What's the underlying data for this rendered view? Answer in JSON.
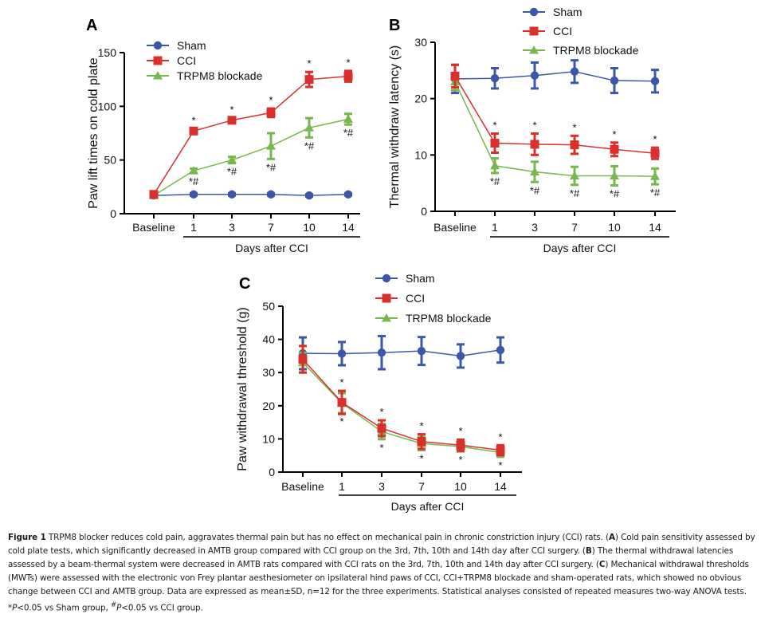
{
  "chart_data": [
    {
      "type": "line",
      "panel": "A",
      "title": "",
      "xlabel": "Days after CCI",
      "ylabel": "Paw lift times on cold plate",
      "categories": [
        "Baseline",
        "1",
        "3",
        "7",
        "10",
        "14"
      ],
      "yticks": [
        0,
        50,
        100,
        150
      ],
      "ylim": [
        0,
        150
      ],
      "legend": [
        "Sham",
        "CCI",
        "TRPM8 blockade"
      ],
      "legend_position": "top-left",
      "series": [
        {
          "name": "Sham",
          "color": "#3b58a8",
          "marker": "circle",
          "values": [
            17,
            18,
            18,
            18,
            17,
            18
          ],
          "errors": [
            1,
            1,
            1,
            1,
            1,
            1
          ]
        },
        {
          "name": "CCI",
          "color": "#d9302c",
          "marker": "square",
          "values": [
            18,
            77,
            87,
            94,
            125,
            128
          ],
          "errors": [
            1,
            2,
            2,
            4,
            7,
            5
          ]
        },
        {
          "name": "TRPM8 blockade",
          "color": "#76b84b",
          "marker": "triangle",
          "values": [
            17,
            40,
            50,
            63,
            80,
            88
          ],
          "errors": [
            1,
            2,
            3,
            12,
            9,
            5
          ]
        }
      ],
      "annotations": [
        {
          "series": "CCI",
          "index": 1,
          "text": "*",
          "pos": "above"
        },
        {
          "series": "CCI",
          "index": 2,
          "text": "*",
          "pos": "above"
        },
        {
          "series": "CCI",
          "index": 3,
          "text": "*",
          "pos": "above"
        },
        {
          "series": "CCI",
          "index": 4,
          "text": "*",
          "pos": "above"
        },
        {
          "series": "CCI",
          "index": 5,
          "text": "*",
          "pos": "above"
        },
        {
          "series": "TRPM8 blockade",
          "index": 1,
          "text": "*#",
          "pos": "below"
        },
        {
          "series": "TRPM8 blockade",
          "index": 2,
          "text": "*#",
          "pos": "below"
        },
        {
          "series": "TRPM8 blockade",
          "index": 3,
          "text": "*#",
          "pos": "below"
        },
        {
          "series": "TRPM8 blockade",
          "index": 4,
          "text": "*#",
          "pos": "below"
        },
        {
          "series": "TRPM8 blockade",
          "index": 5,
          "text": "*#",
          "pos": "below"
        }
      ]
    },
    {
      "type": "line",
      "panel": "B",
      "title": "",
      "xlabel": "Days after CCI",
      "ylabel": "Thermal withdraw latency (s)",
      "categories": [
        "Baseline",
        "1",
        "3",
        "7",
        "10",
        "14"
      ],
      "yticks": [
        0,
        10,
        20,
        30
      ],
      "ylim": [
        0,
        30
      ],
      "legend": [
        "Sham",
        "CCI",
        "TRPM8 blockade"
      ],
      "legend_position": "top-right",
      "series": [
        {
          "name": "Sham",
          "color": "#3b58a8",
          "marker": "circle",
          "values": [
            23.5,
            23.6,
            24.1,
            24.8,
            23.2,
            23.1
          ],
          "errors": [
            2.5,
            1.8,
            2.3,
            2.0,
            2.2,
            2.0
          ]
        },
        {
          "name": "CCI",
          "color": "#d9302c",
          "marker": "square",
          "values": [
            24.0,
            12.1,
            11.9,
            11.8,
            11.0,
            10.3
          ],
          "errors": [
            2.0,
            1.7,
            1.9,
            1.6,
            1.2,
            1.0
          ]
        },
        {
          "name": "TRPM8 blockade",
          "color": "#76b84b",
          "marker": "triangle",
          "values": [
            23.0,
            8.1,
            7.0,
            6.3,
            6.3,
            6.2
          ],
          "errors": [
            1.5,
            1.3,
            1.8,
            1.6,
            1.7,
            1.4
          ]
        }
      ],
      "annotations": [
        {
          "series": "CCI",
          "index": 1,
          "text": "*",
          "pos": "above"
        },
        {
          "series": "CCI",
          "index": 2,
          "text": "*",
          "pos": "above"
        },
        {
          "series": "CCI",
          "index": 3,
          "text": "*",
          "pos": "above"
        },
        {
          "series": "CCI",
          "index": 4,
          "text": "*",
          "pos": "above"
        },
        {
          "series": "CCI",
          "index": 5,
          "text": "*",
          "pos": "above"
        },
        {
          "series": "TRPM8 blockade",
          "index": 1,
          "text": "*#",
          "pos": "below"
        },
        {
          "series": "TRPM8 blockade",
          "index": 2,
          "text": "*#",
          "pos": "below"
        },
        {
          "series": "TRPM8 blockade",
          "index": 3,
          "text": "*#",
          "pos": "below"
        },
        {
          "series": "TRPM8 blockade",
          "index": 4,
          "text": "*#",
          "pos": "below"
        },
        {
          "series": "TRPM8 blockade",
          "index": 5,
          "text": "*#",
          "pos": "below"
        }
      ]
    },
    {
      "type": "line",
      "panel": "C",
      "title": "",
      "xlabel": "Days after CCI",
      "ylabel": "Paw withdrawal threshold (g)",
      "categories": [
        "Baseline",
        "1",
        "3",
        "7",
        "10",
        "14"
      ],
      "yticks": [
        0,
        10,
        20,
        30,
        40,
        50
      ],
      "ylim": [
        0,
        50
      ],
      "legend": [
        "Sham",
        "CCI",
        "TRPM8 blockade"
      ],
      "legend_position": "top-right",
      "series": [
        {
          "name": "Sham",
          "color": "#3b58a8",
          "marker": "circle",
          "values": [
            35.8,
            35.7,
            36.0,
            36.5,
            35.0,
            36.8
          ],
          "errors": [
            4.8,
            3.5,
            5.0,
            4.2,
            3.5,
            3.8
          ]
        },
        {
          "name": "CCI",
          "color": "#d9302c",
          "marker": "square",
          "values": [
            34.0,
            21.0,
            13.2,
            9.2,
            8.1,
            6.6
          ],
          "errors": [
            4.0,
            3.5,
            2.4,
            2.2,
            1.7,
            1.5
          ]
        },
        {
          "name": "TRPM8 blockade",
          "color": "#76b84b",
          "marker": "triangle",
          "values": [
            33.0,
            20.8,
            12.2,
            8.6,
            7.7,
            5.9
          ],
          "errors": [
            3.0,
            3.0,
            2.3,
            2.0,
            1.5,
            1.3
          ]
        }
      ],
      "annotations": [
        {
          "series": "CCI",
          "index": 1,
          "text": "*",
          "pos": "above"
        },
        {
          "series": "CCI",
          "index": 2,
          "text": "*",
          "pos": "above"
        },
        {
          "series": "CCI",
          "index": 3,
          "text": "*",
          "pos": "above"
        },
        {
          "series": "CCI",
          "index": 4,
          "text": "*",
          "pos": "above"
        },
        {
          "series": "CCI",
          "index": 5,
          "text": "*",
          "pos": "above"
        },
        {
          "series": "TRPM8 blockade",
          "index": 1,
          "text": "*",
          "pos": "below"
        },
        {
          "series": "TRPM8 blockade",
          "index": 2,
          "text": "*",
          "pos": "below"
        },
        {
          "series": "TRPM8 blockade",
          "index": 3,
          "text": "*",
          "pos": "below"
        },
        {
          "series": "TRPM8 blockade",
          "index": 4,
          "text": "*",
          "pos": "below"
        },
        {
          "series": "TRPM8 blockade",
          "index": 5,
          "text": "*",
          "pos": "below"
        }
      ]
    }
  ],
  "caption": {
    "label": "Figure 1",
    "parts": [
      {
        "t": "text",
        "v": " TRPM8 blocker reduces cold pain, aggravates thermal pain but has no effect on mechanical pain in chronic constriction injury  (CCI) rats. ("
      },
      {
        "t": "bold",
        "v": "A"
      },
      {
        "t": "text",
        "v": ") Cold pain sensitivity assessed by cold plate tests, which significantly decreased in AMTB group compared with CCI group on the 3rd, 7th, 10th and 14th day after CCI surgery. ("
      },
      {
        "t": "bold",
        "v": "B"
      },
      {
        "t": "text",
        "v": ") The thermal withdrawal latencies assessed by a beam-thermal system were decreased in AMTB rats compared with CCI rats on the 3rd, 7th, 10th and 14th day after CCI surgery. ("
      },
      {
        "t": "bold",
        "v": "C"
      },
      {
        "t": "text",
        "v": ") Mechanical withdrawal thresholds (MWTs) were assessed with the electronic von Frey plantar aesthesiometer on ipsilateral hind paws of CCI, CCI+TRPM8 blockade and sham-operated rats, which showed no obvious change between CCI and AMTB group. Data are expressed as mean±SD, n=12 for the three experiments. Statistical analyses consisted of repeated measures two-way ANOVA tests. *"
      },
      {
        "t": "italic",
        "v": "P"
      },
      {
        "t": "text",
        "v": "<0.05 vs Sham group, "
      },
      {
        "t": "sup",
        "v": "#"
      },
      {
        "t": "italic",
        "v": "P"
      },
      {
        "t": "text",
        "v": "<0.05 vs CCI group."
      }
    ]
  }
}
